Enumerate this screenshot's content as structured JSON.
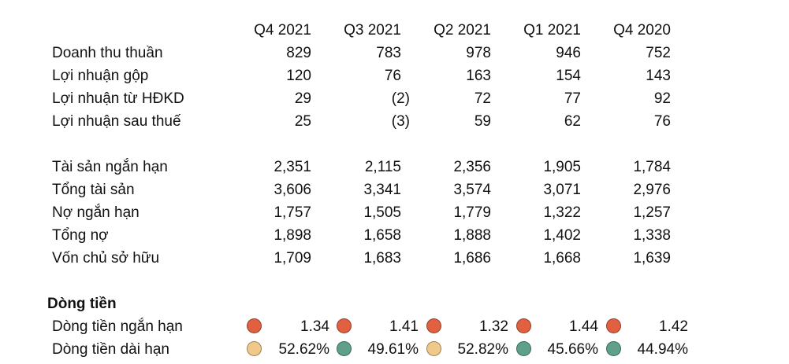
{
  "colors": {
    "red": "#e06040",
    "yellow": "#f0c88a",
    "green": "#5fa08a"
  },
  "header": {
    "periods": [
      "Q4 2021",
      "Q3 2021",
      "Q2 2021",
      "Q1 2021",
      "Q4 2020"
    ]
  },
  "income": [
    {
      "label": "Doanh thu thuần",
      "values": [
        "829",
        "783",
        "978",
        "946",
        "752"
      ]
    },
    {
      "label": "Lợi nhuận gộp",
      "values": [
        "120",
        "76",
        "163",
        "154",
        "143"
      ]
    },
    {
      "label": "Lợi nhuận từ HĐKD",
      "values": [
        "29",
        "(2)",
        "72",
        "77",
        "92"
      ]
    },
    {
      "label": "Lợi nhuận sau thuế",
      "values": [
        "25",
        "(3)",
        "59",
        "62",
        "76"
      ]
    }
  ],
  "balance": [
    {
      "label": "Tài sản ngắn hạn",
      "values": [
        "2,351",
        "2,115",
        "2,356",
        "1,905",
        "1,784"
      ]
    },
    {
      "label": "Tổng tài sản",
      "values": [
        "3,606",
        "3,341",
        "3,574",
        "3,071",
        "2,976"
      ]
    },
    {
      "label": "Nợ ngắn hạn",
      "values": [
        "1,757",
        "1,505",
        "1,779",
        "1,322",
        "1,257"
      ]
    },
    {
      "label": "Tổng nợ",
      "values": [
        "1,898",
        "1,658",
        "1,888",
        "1,402",
        "1,338"
      ]
    },
    {
      "label": "Vốn chủ sở hữu",
      "values": [
        "1,709",
        "1,683",
        "1,686",
        "1,668",
        "1,639"
      ]
    }
  ],
  "cashflow": {
    "title": "Dòng tiền",
    "rows": [
      {
        "label": "Dòng tiền ngắn hạn",
        "values": [
          "1.34",
          "1.41",
          "1.32",
          "1.44",
          "1.42"
        ],
        "indicators": [
          "red",
          "red",
          "red",
          "red",
          "red"
        ]
      },
      {
        "label": "Dòng tiền dài hạn",
        "values": [
          "52.62%",
          "49.61%",
          "52.82%",
          "45.66%",
          "44.94%"
        ],
        "indicators": [
          "yellow",
          "green",
          "yellow",
          "green",
          "green"
        ]
      }
    ]
  }
}
